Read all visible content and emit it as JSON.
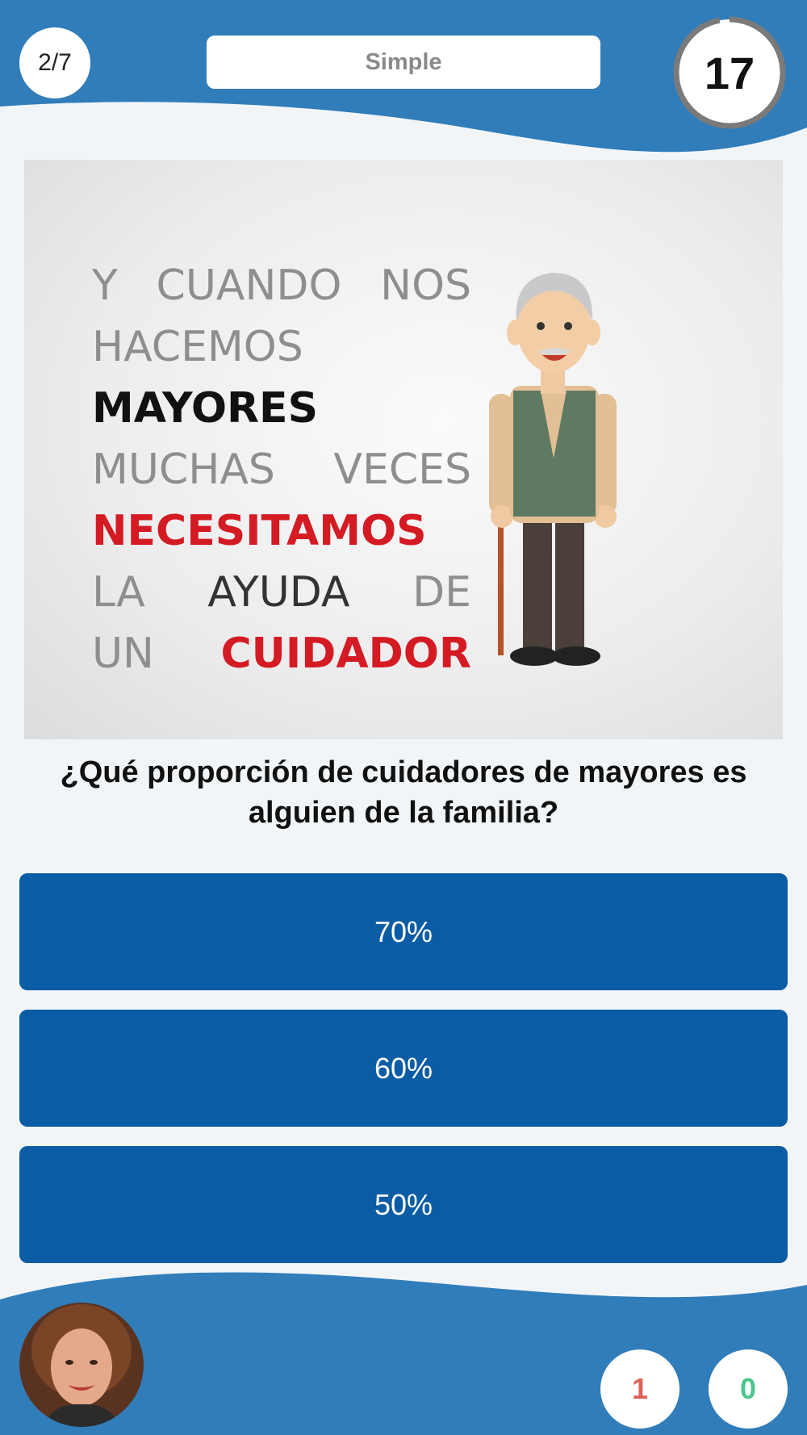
{
  "header": {
    "progress": "2/7",
    "difficulty": "Simple",
    "timer_seconds": "17",
    "timer_remaining_fraction": 0.97
  },
  "image": {
    "lines": [
      "Y CUANDO NOS",
      "HACEMOS",
      "MAYORES",
      "MUCHAS VECES",
      "NECESITAMOS",
      [
        "LA",
        "AYUDA",
        "DE"
      ],
      [
        "UN",
        "CUIDADOR"
      ]
    ]
  },
  "question": "¿Qué proporción de cuidadores de mayores es alguien de la familia?",
  "answers": [
    "70%",
    "60%",
    "50%"
  ],
  "score": {
    "wrong": "1",
    "right": "0"
  },
  "colors": {
    "header_blue": "#317dba",
    "answer_blue": "#0a5ca4",
    "wrong_red": "#e0615a",
    "right_green": "#4cc78e"
  },
  "icons": {
    "timer": "ring-timer-icon",
    "player": "user-avatar-photo"
  }
}
